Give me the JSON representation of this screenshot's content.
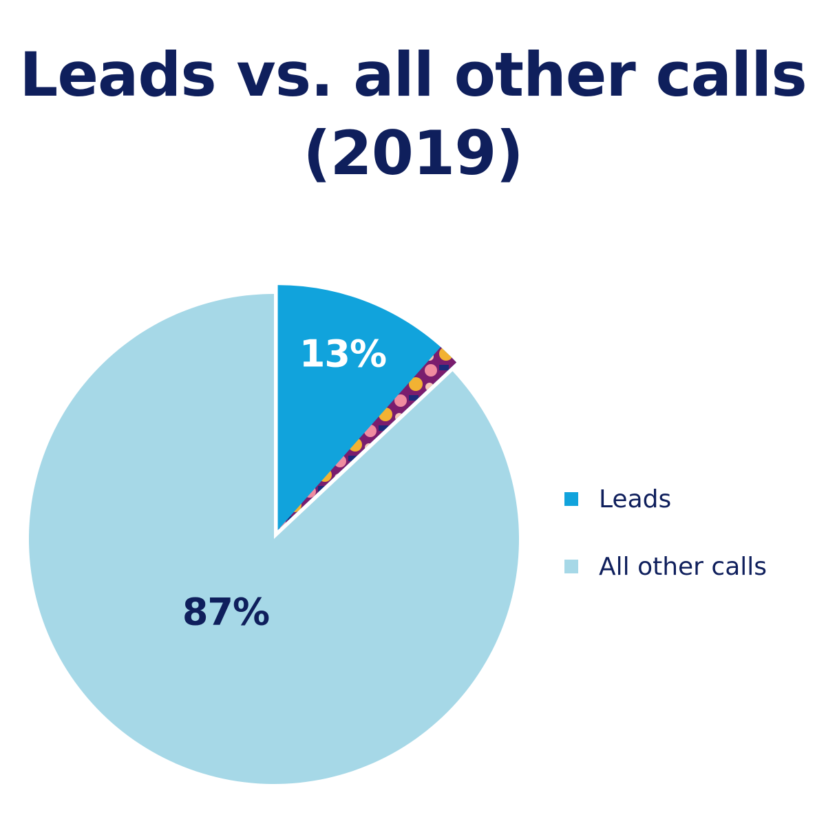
{
  "chart_data": {
    "type": "pie",
    "title": "Leads vs. all other calls (2019)",
    "title_lines": [
      "Leads vs. all other calls",
      "(2019)"
    ],
    "slices": [
      {
        "name": "Leads",
        "value": 13,
        "label": "13%",
        "color": "#11a3dc",
        "label_color": "#ffffff",
        "exploded": true
      },
      {
        "name": "All other calls",
        "value": 87,
        "label": "87%",
        "color": "#a6d8e7",
        "label_color": "#0f1f5c",
        "exploded": false
      }
    ],
    "legend": {
      "placement": "right",
      "entries": [
        {
          "label": "Leads",
          "color": "#11a3dc"
        },
        {
          "label": "All other calls",
          "color": "#a6d8e7"
        }
      ]
    }
  },
  "colors": {
    "title": "#0f1f5c",
    "background": "#ffffff"
  }
}
